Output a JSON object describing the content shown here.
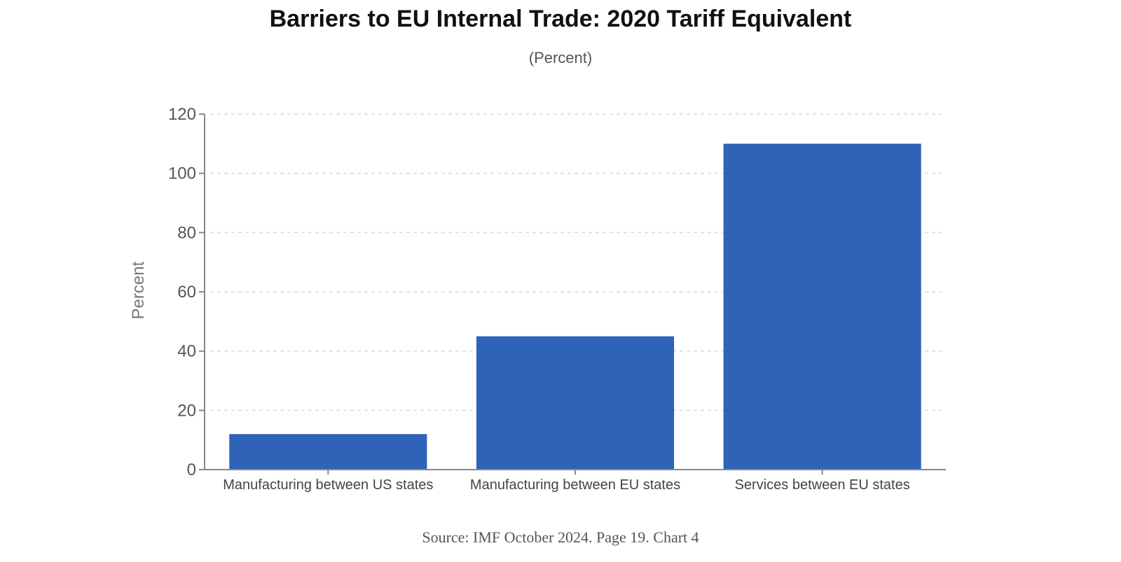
{
  "header": {
    "title": "Barriers to EU Internal Trade: 2020 Tariff Equivalent",
    "subtitle": "(Percent)"
  },
  "footer": {
    "source": "Source: IMF October 2024. Page 19. Chart 4"
  },
  "colors": {
    "bar": "#2f63b8",
    "grid": "#d9d9d9",
    "axis": "#888888"
  },
  "chart_data": {
    "type": "bar",
    "categories": [
      "Manufacturing between US states",
      "Manufacturing between EU states",
      "Services between EU states"
    ],
    "values": [
      12,
      45,
      110
    ],
    "ylabel": "Percent",
    "ylim": [
      0,
      120
    ],
    "yticks": [
      0,
      20,
      40,
      60,
      80,
      100,
      120
    ],
    "grid": true,
    "legend": "none"
  }
}
